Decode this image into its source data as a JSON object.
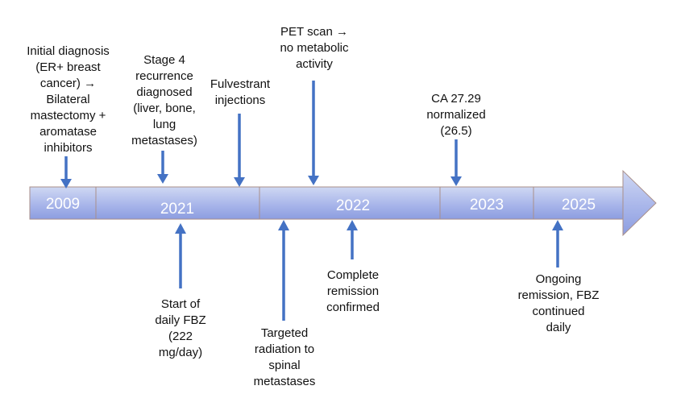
{
  "colors": {
    "bar_light": "#cfd8f3",
    "bar_dark": "#8c9de0",
    "segment_border": "#a98f8a",
    "arrow": "#4472c4",
    "text": "#111111"
  },
  "timeline": {
    "segments": [
      {
        "id": "2009",
        "label": "2009"
      },
      {
        "id": "2021",
        "label": "2021"
      },
      {
        "id": "2022",
        "label": "2022"
      },
      {
        "id": "2023",
        "label": "2023"
      },
      {
        "id": "2025",
        "label": "2025"
      }
    ]
  },
  "events_above": [
    {
      "id": "initial-diagnosis",
      "text": "Initial diagnosis\n(ER+ breast\ncancer) →\nBilateral\nmastectomy +\naromatase\ninhibitors"
    },
    {
      "id": "stage4-recurrence",
      "text": "Stage 4\nrecurrence\ndiagnosed\n(liver, bone,\nlung\nmetastases)"
    },
    {
      "id": "fulvestrant",
      "text": "Fulvestrant\ninjections"
    },
    {
      "id": "pet-scan",
      "text": "PET scan →\nno metabolic\nactivity"
    },
    {
      "id": "ca2729",
      "text": "CA 27.29\nnormalized\n(26.5)"
    }
  ],
  "events_below": [
    {
      "id": "start-fbz",
      "text": "Start of\ndaily FBZ\n(222\nmg/day)"
    },
    {
      "id": "targeted-radiation",
      "text": "Targeted\nradiation to\nspinal\nmetastases"
    },
    {
      "id": "complete-remission",
      "text": "Complete\nremission\nconfirmed"
    },
    {
      "id": "ongoing-remission",
      "text": "Ongoing\nremission, FBZ\ncontinued\ndaily"
    }
  ]
}
